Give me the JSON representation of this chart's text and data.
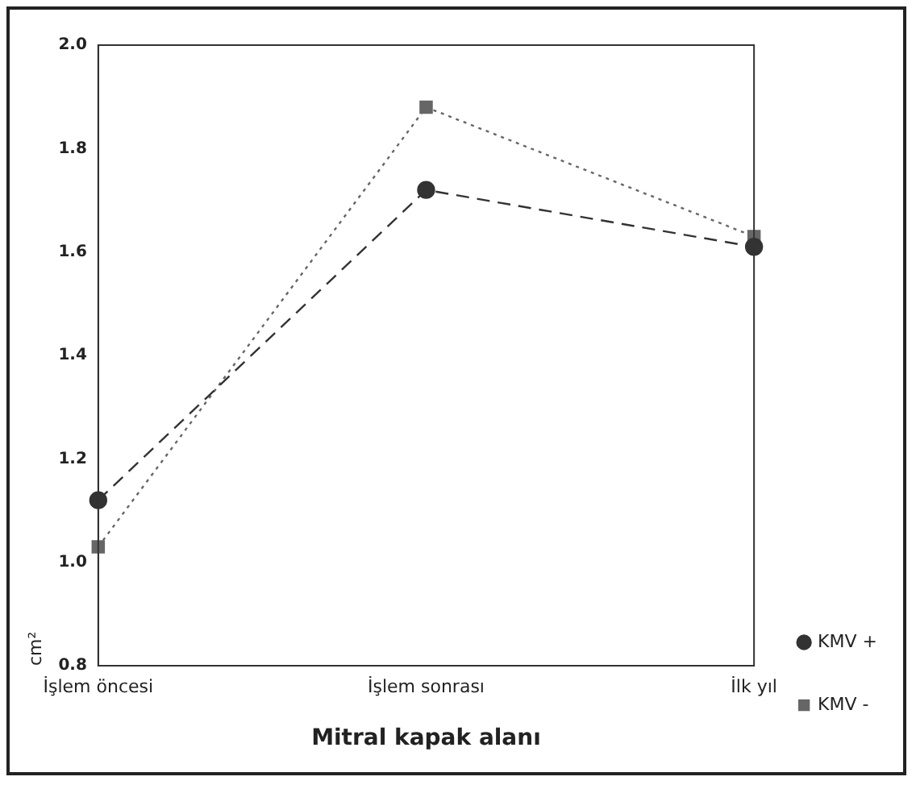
{
  "chart_data": {
    "type": "line",
    "xlabel": "Mitral kapak alanı",
    "ylabel": "cm²",
    "categories": [
      "İşlem öncesi",
      "İşlem sonrası",
      "İlk yıl"
    ],
    "series": [
      {
        "name": "KMV +",
        "color": "#333333",
        "values": [
          1.12,
          1.72,
          1.61
        ],
        "marker": "circle",
        "line_style": "dashed"
      },
      {
        "name": "KMV -",
        "color": "#666666",
        "values": [
          1.03,
          1.88,
          1.63
        ],
        "marker": "square",
        "line_style": "dotted"
      }
    ],
    "ylim": [
      0.8,
      2.0
    ],
    "yticks": [
      0.8,
      {
        "value": 1.0,
        "label": "1.0"
      },
      1.2,
      1.4,
      1.6,
      1.8,
      {
        "value": 2.0,
        "label": "2.0"
      }
    ],
    "grid": false,
    "legend": "bottom right"
  }
}
